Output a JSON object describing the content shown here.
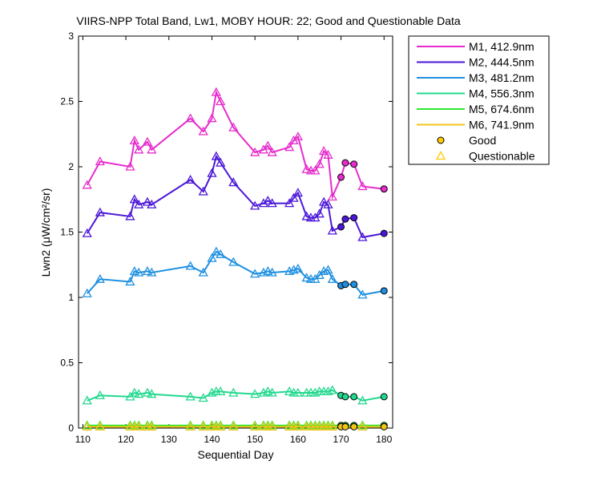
{
  "chart_data": {
    "type": "line",
    "title": "VIIRS-NPP Total Band, Lw1, MOBY HOUR: 22;  Good and Questionable Data",
    "xlabel": "Sequential Day",
    "ylabel": "Lwn2 (μW/cm²/sr)",
    "xlim": [
      109,
      182
    ],
    "ylim": [
      0,
      3
    ],
    "xticks": [
      110,
      120,
      130,
      140,
      150,
      160,
      170,
      180
    ],
    "yticks": [
      0,
      0.5,
      1,
      1.5,
      2,
      2.5,
      3
    ],
    "ytick_labels": [
      "0",
      "0.5",
      "1",
      "1.5",
      "2",
      "2.5",
      "3"
    ],
    "grid": false,
    "legend_position": "outside top-right",
    "marker_legend": [
      {
        "label": "Good",
        "marker": "circle",
        "color": "#ffcc00"
      },
      {
        "label": "Questionable",
        "marker": "triangle",
        "color": "#ffcc00"
      }
    ],
    "series": [
      {
        "name": "M1, 412.9nm",
        "color": "#e62ccc",
        "x": [
          111,
          114,
          121,
          122,
          123,
          125,
          126,
          135,
          138,
          140,
          141,
          142,
          145,
          150,
          152,
          153,
          154,
          158,
          159,
          160,
          162,
          163,
          164,
          165,
          166,
          167,
          168,
          170,
          171,
          173,
          175,
          180
        ],
        "y": [
          1.86,
          2.04,
          2.0,
          2.2,
          2.13,
          2.19,
          2.13,
          2.37,
          2.27,
          2.37,
          2.57,
          2.5,
          2.3,
          2.11,
          2.13,
          2.16,
          2.11,
          2.15,
          2.2,
          2.23,
          1.98,
          1.97,
          1.97,
          2.02,
          2.12,
          2.09,
          1.77,
          1.92,
          2.03,
          2.02,
          1.85,
          1.83
        ],
        "quality": [
          "Q",
          "Q",
          "Q",
          "Q",
          "Q",
          "Q",
          "Q",
          "Q",
          "Q",
          "Q",
          "Q",
          "Q",
          "Q",
          "Q",
          "Q",
          "Q",
          "Q",
          "Q",
          "Q",
          "Q",
          "Q",
          "Q",
          "Q",
          "Q",
          "Q",
          "Q",
          "Q",
          "G",
          "G",
          "G",
          "Q",
          "G"
        ]
      },
      {
        "name": "M2, 444.5nm",
        "color": "#4b17d8",
        "x": [
          111,
          114,
          121,
          122,
          123,
          125,
          126,
          135,
          138,
          140,
          141,
          142,
          145,
          150,
          152,
          153,
          154,
          158,
          159,
          160,
          162,
          163,
          164,
          165,
          166,
          167,
          168,
          170,
          171,
          173,
          175,
          180
        ],
        "y": [
          1.49,
          1.65,
          1.62,
          1.75,
          1.71,
          1.73,
          1.71,
          1.9,
          1.81,
          1.95,
          2.08,
          2.03,
          1.88,
          1.7,
          1.72,
          1.74,
          1.72,
          1.72,
          1.76,
          1.8,
          1.62,
          1.61,
          1.61,
          1.64,
          1.73,
          1.71,
          1.51,
          1.54,
          1.6,
          1.61,
          1.46,
          1.49
        ],
        "quality": [
          "Q",
          "Q",
          "Q",
          "Q",
          "Q",
          "Q",
          "Q",
          "Q",
          "Q",
          "Q",
          "Q",
          "Q",
          "Q",
          "Q",
          "Q",
          "Q",
          "Q",
          "Q",
          "Q",
          "Q",
          "Q",
          "Q",
          "Q",
          "Q",
          "Q",
          "Q",
          "Q",
          "G",
          "G",
          "G",
          "Q",
          "G"
        ]
      },
      {
        "name": "M3, 481.2nm",
        "color": "#1e90e0",
        "x": [
          111,
          114,
          121,
          122,
          123,
          125,
          126,
          135,
          138,
          140,
          141,
          142,
          145,
          150,
          152,
          153,
          154,
          158,
          159,
          160,
          162,
          163,
          164,
          165,
          166,
          167,
          168,
          170,
          171,
          173,
          175,
          180
        ],
        "y": [
          1.03,
          1.14,
          1.12,
          1.2,
          1.19,
          1.2,
          1.19,
          1.24,
          1.19,
          1.3,
          1.35,
          1.33,
          1.27,
          1.18,
          1.19,
          1.2,
          1.19,
          1.2,
          1.21,
          1.22,
          1.15,
          1.14,
          1.14,
          1.17,
          1.2,
          1.21,
          1.14,
          1.09,
          1.1,
          1.1,
          1.02,
          1.05
        ],
        "quality": [
          "Q",
          "Q",
          "Q",
          "Q",
          "Q",
          "Q",
          "Q",
          "Q",
          "Q",
          "Q",
          "Q",
          "Q",
          "Q",
          "Q",
          "Q",
          "Q",
          "Q",
          "Q",
          "Q",
          "Q",
          "Q",
          "Q",
          "Q",
          "Q",
          "Q",
          "Q",
          "Q",
          "G",
          "G",
          "G",
          "Q",
          "G"
        ]
      },
      {
        "name": "M4, 556.3nm",
        "color": "#22d88e",
        "x": [
          111,
          114,
          121,
          122,
          123,
          125,
          126,
          135,
          138,
          140,
          141,
          142,
          145,
          150,
          152,
          153,
          154,
          158,
          159,
          160,
          162,
          163,
          164,
          165,
          166,
          167,
          168,
          170,
          171,
          173,
          175,
          180
        ],
        "y": [
          0.21,
          0.25,
          0.24,
          0.27,
          0.26,
          0.27,
          0.26,
          0.24,
          0.23,
          0.27,
          0.28,
          0.28,
          0.27,
          0.26,
          0.27,
          0.28,
          0.27,
          0.28,
          0.27,
          0.27,
          0.27,
          0.27,
          0.27,
          0.28,
          0.28,
          0.28,
          0.29,
          0.25,
          0.24,
          0.24,
          0.21,
          0.24
        ],
        "quality": [
          "Q",
          "Q",
          "Q",
          "Q",
          "Q",
          "Q",
          "Q",
          "Q",
          "Q",
          "Q",
          "Q",
          "Q",
          "Q",
          "Q",
          "Q",
          "Q",
          "Q",
          "Q",
          "Q",
          "Q",
          "Q",
          "Q",
          "Q",
          "Q",
          "Q",
          "Q",
          "Q",
          "G",
          "G",
          "G",
          "Q",
          "G"
        ]
      },
      {
        "name": "M5, 674.6nm",
        "color": "#2ee82e",
        "x": [
          111,
          114,
          121,
          122,
          123,
          125,
          126,
          135,
          138,
          140,
          141,
          142,
          145,
          150,
          152,
          153,
          154,
          158,
          159,
          160,
          162,
          163,
          164,
          165,
          166,
          167,
          168,
          170,
          171,
          173,
          175,
          180
        ],
        "y": [
          0.02,
          0.02,
          0.02,
          0.02,
          0.02,
          0.02,
          0.02,
          0.02,
          0.02,
          0.02,
          0.02,
          0.02,
          0.02,
          0.02,
          0.02,
          0.02,
          0.02,
          0.02,
          0.02,
          0.02,
          0.02,
          0.02,
          0.02,
          0.02,
          0.02,
          0.02,
          0.02,
          0.02,
          0.02,
          0.02,
          0.02,
          0.02
        ],
        "quality": [
          "Q",
          "Q",
          "Q",
          "Q",
          "Q",
          "Q",
          "Q",
          "Q",
          "Q",
          "Q",
          "Q",
          "Q",
          "Q",
          "Q",
          "Q",
          "Q",
          "Q",
          "Q",
          "Q",
          "Q",
          "Q",
          "Q",
          "Q",
          "Q",
          "Q",
          "Q",
          "Q",
          "G",
          "G",
          "G",
          "Q",
          "G"
        ]
      },
      {
        "name": "M6, 741.9nm",
        "color": "#f0c419",
        "x": [
          111,
          114,
          121,
          122,
          123,
          125,
          126,
          135,
          138,
          140,
          141,
          142,
          145,
          150,
          152,
          153,
          154,
          158,
          159,
          160,
          162,
          163,
          164,
          165,
          166,
          167,
          168,
          170,
          171,
          173,
          175,
          180
        ],
        "y": [
          0.01,
          0.01,
          0.01,
          0.01,
          0.01,
          0.01,
          0.01,
          0.01,
          0.01,
          0.01,
          0.01,
          0.01,
          0.01,
          0.01,
          0.01,
          0.01,
          0.01,
          0.01,
          0.01,
          0.01,
          0.01,
          0.01,
          0.01,
          0.01,
          0.01,
          0.01,
          0.01,
          0.01,
          0.01,
          0.01,
          0.01,
          0.01
        ],
        "quality": [
          "Q",
          "Q",
          "Q",
          "Q",
          "Q",
          "Q",
          "Q",
          "Q",
          "Q",
          "Q",
          "Q",
          "Q",
          "Q",
          "Q",
          "Q",
          "Q",
          "Q",
          "Q",
          "Q",
          "Q",
          "Q",
          "Q",
          "Q",
          "Q",
          "Q",
          "Q",
          "Q",
          "G",
          "G",
          "G",
          "Q",
          "G"
        ]
      }
    ]
  }
}
